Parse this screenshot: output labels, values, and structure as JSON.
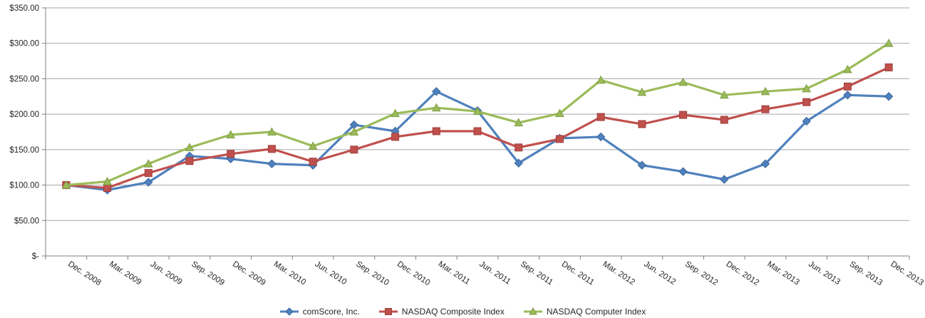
{
  "chart_data": {
    "type": "line",
    "title": "",
    "xlabel": "",
    "ylabel": "",
    "categories": [
      "Dec. 2008",
      "Mar. 2009",
      "Jun. 2009",
      "Sep. 2009",
      "Dec. 2009",
      "Mar. 2010",
      "Jun. 2010",
      "Sep. 2010",
      "Dec. 2010",
      "Mar. 2011",
      "Jun. 2011",
      "Sep. 2011",
      "Dec. 2011",
      "Mar. 2012",
      "Jun. 2012",
      "Sep. 2012",
      "Dec. 2012",
      "Mar. 2013",
      "Jun. 2013",
      "Sep. 2013",
      "Dec. 2013"
    ],
    "series": [
      {
        "name": "comScore, Inc.",
        "color": "#4F81BD",
        "marker_border": "#3A679E",
        "marker": "diamond",
        "values": [
          100,
          93,
          104,
          141,
          137,
          130,
          128,
          185,
          176,
          232,
          205,
          131,
          166,
          168,
          128,
          119,
          108,
          130,
          190,
          227,
          225
        ]
      },
      {
        "name": "NASDAQ Composite Index",
        "color": "#C0504D",
        "marker_border": "#9E3E3B",
        "marker": "square",
        "values": [
          100,
          96,
          117,
          134,
          144,
          151,
          133,
          150,
          168,
          176,
          176,
          153,
          165,
          196,
          186,
          199,
          192,
          207,
          217,
          239,
          266
        ]
      },
      {
        "name": "NASDAQ Computer Index",
        "color": "#9BBB59",
        "marker_border": "#7E9D45",
        "marker": "triangle",
        "values": [
          100,
          105,
          130,
          153,
          171,
          175,
          155,
          175,
          201,
          209,
          204,
          188,
          201,
          248,
          231,
          245,
          227,
          232,
          236,
          263,
          300
        ]
      }
    ],
    "y_axis": {
      "min": 0,
      "max": 350,
      "step": 50,
      "tick_labels": [
        "$-",
        "$50.00",
        "$100.00",
        "$150.00",
        "$200.00",
        "$250.00",
        "$300.00",
        "$350.00"
      ]
    },
    "grid": true,
    "legend_position": "bottom",
    "colors": {
      "gridline": "#A6A6A6",
      "axis_line": "#7F7F7F",
      "axis_text": "#262626",
      "background": "#FFFFFF"
    }
  }
}
